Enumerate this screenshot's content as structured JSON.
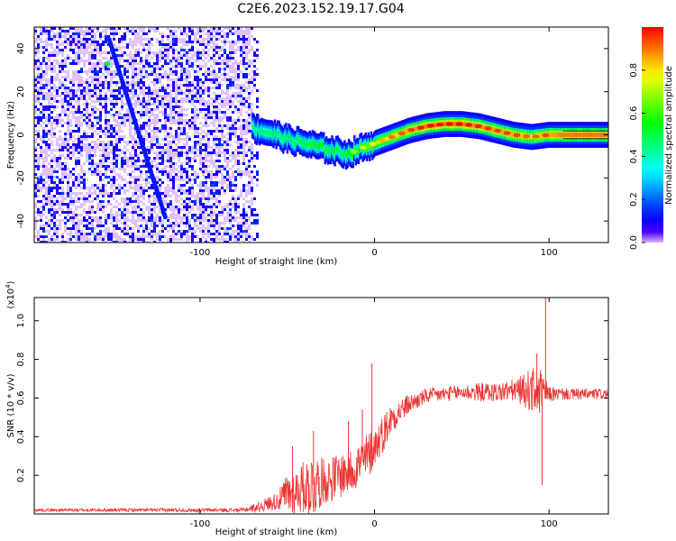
{
  "title": "C2E6.2023.152.19.17.G04",
  "chart_data": [
    {
      "type": "heatmap",
      "name": "spectrogram",
      "xlabel": "Height of straight line (km)",
      "ylabel": "Frequency (Hz)",
      "xlim": [
        -195,
        134
      ],
      "ylim": [
        -50,
        50
      ],
      "xticks": [
        -100,
        0,
        100
      ],
      "yticks": [
        -40,
        -20,
        0,
        20,
        40
      ],
      "noise_region_x": [
        -195,
        -70
      ],
      "diagonal_trace": {
        "x": [
          -152,
          -120
        ],
        "y": [
          44,
          -38
        ],
        "peak": [
          -153,
          33
        ]
      },
      "signal_track": {
        "x": [
          -70,
          -60,
          -50,
          -40,
          -30,
          -20,
          -15,
          -10,
          0,
          10,
          20,
          30,
          40,
          50,
          60,
          70,
          80,
          90,
          100,
          110,
          120,
          134
        ],
        "y": [
          3,
          1,
          -2,
          -4,
          -6,
          -8,
          -9,
          -7,
          -4,
          -1,
          2,
          4,
          5,
          5,
          4,
          2,
          0,
          -1,
          0,
          0,
          0,
          0
        ],
        "amplitude": [
          0.45,
          0.48,
          0.5,
          0.52,
          0.55,
          0.5,
          0.55,
          0.6,
          0.7,
          0.8,
          0.85,
          0.9,
          0.9,
          0.9,
          0.88,
          0.85,
          0.85,
          0.8,
          0.85,
          0.9,
          0.9,
          0.9
        ]
      },
      "colorbar": {
        "label": "Normalized spectral amplitude",
        "range": [
          0,
          1
        ],
        "ticks": [
          "0.0",
          "0.2",
          "0.4",
          "0.6",
          "0.8"
        ]
      }
    },
    {
      "type": "line",
      "name": "snr",
      "xlabel": "Height of straight line (km)",
      "ylabel": "SNR (10 * v/v)",
      "scale_label": "(x10",
      "scale_exp": "4",
      "scale_close": ")",
      "xlim": [
        -195,
        134
      ],
      "ylim": [
        0,
        1.12
      ],
      "xticks": [
        -100,
        0,
        100
      ],
      "yticks": [
        0.2,
        0.4,
        0.6,
        0.8,
        1.0
      ],
      "ytick_labels": [
        "0.2",
        "0.4",
        "0.6",
        "0.8",
        "1.0"
      ],
      "color": "#ee3333",
      "envelope": {
        "x": [
          -195,
          -75,
          -65,
          -55,
          -50,
          -45,
          -40,
          -35,
          -30,
          -25,
          -20,
          -15,
          -10,
          -5,
          0,
          5,
          10,
          20,
          30,
          40,
          50,
          60,
          70,
          80,
          85,
          90,
          95,
          100,
          110,
          120,
          134
        ],
        "base": [
          0.02,
          0.02,
          0.04,
          0.07,
          0.1,
          0.12,
          0.14,
          0.15,
          0.17,
          0.18,
          0.2,
          0.22,
          0.25,
          0.28,
          0.35,
          0.42,
          0.5,
          0.57,
          0.61,
          0.62,
          0.63,
          0.63,
          0.63,
          0.64,
          0.64,
          0.64,
          0.63,
          0.62,
          0.62,
          0.62,
          0.62
        ],
        "amp": [
          0.008,
          0.01,
          0.03,
          0.05,
          0.12,
          0.12,
          0.14,
          0.18,
          0.12,
          0.12,
          0.12,
          0.12,
          0.12,
          0.14,
          0.1,
          0.1,
          0.08,
          0.05,
          0.04,
          0.04,
          0.04,
          0.05,
          0.05,
          0.06,
          0.08,
          0.12,
          0.12,
          0.04,
          0.03,
          0.03,
          0.03
        ]
      },
      "spikes": [
        {
          "x": -47,
          "y": 0.35
        },
        {
          "x": -35,
          "y": 0.43
        },
        {
          "x": -15,
          "y": 0.48
        },
        {
          "x": -7,
          "y": 0.54
        },
        {
          "x": -1.5,
          "y": 0.78
        },
        {
          "x": 93,
          "y": 0.83
        },
        {
          "x": 96,
          "y": 0.15
        },
        {
          "x": 98,
          "y": 1.12
        }
      ]
    }
  ]
}
